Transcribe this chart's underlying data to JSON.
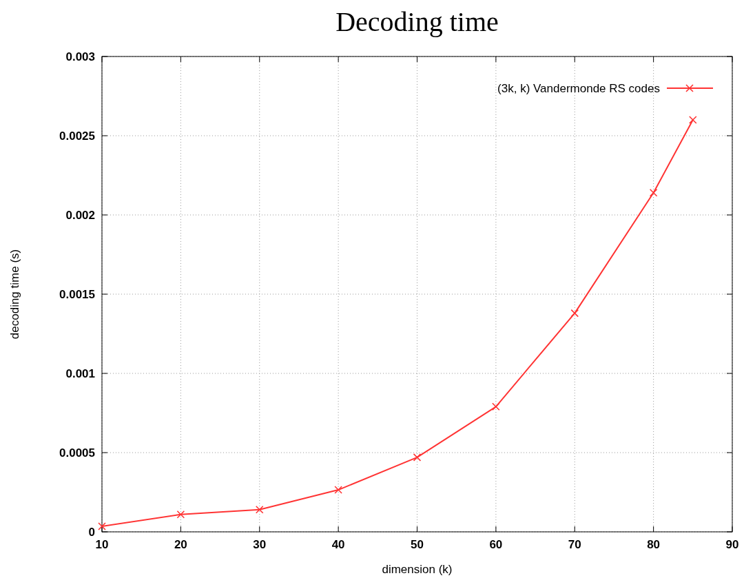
{
  "chart_data": {
    "type": "line",
    "title": "Decoding time",
    "xlabel": "dimension (k)",
    "ylabel": "decoding time (s)",
    "x": [
      10,
      20,
      30,
      40,
      50,
      60,
      70,
      80,
      85
    ],
    "series": [
      {
        "name": "(3k, k) Vandermonde RS codes",
        "color": "#ff3333",
        "values": [
          3.5e-05,
          0.00011,
          0.00014,
          0.000265,
          0.00047,
          0.00079,
          0.00138,
          0.00214,
          0.0026
        ]
      }
    ],
    "xlim": [
      10,
      90
    ],
    "xticks": [
      10,
      20,
      30,
      40,
      50,
      60,
      70,
      80,
      90
    ],
    "ylim": [
      0,
      0.003
    ],
    "yticks": [
      0,
      0.0005,
      0.001,
      0.0015,
      0.002,
      0.0025,
      0.003
    ],
    "grid": true,
    "legend": "top right",
    "marker": "cross",
    "line_style": "solid"
  }
}
